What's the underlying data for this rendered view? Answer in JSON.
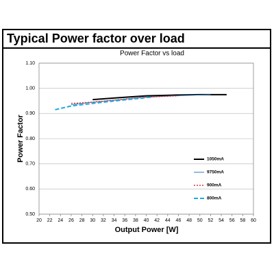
{
  "header": {
    "title": "Typical Power factor over load"
  },
  "chart_data": {
    "type": "line",
    "title": "Power Factor vs load",
    "x_label": "Output Power [W]",
    "y_label": "Power Factor",
    "xlim": [
      20,
      60
    ],
    "xticks": [
      20,
      22,
      24,
      26,
      28,
      30,
      32,
      34,
      36,
      38,
      40,
      42,
      44,
      46,
      48,
      50,
      52,
      54,
      56,
      58,
      60
    ],
    "ylim": [
      0.5,
      1.1
    ],
    "yticks": [
      {
        "value": 0.5,
        "label": "0.50"
      },
      {
        "value": 0.6,
        "label": "0.60"
      },
      {
        "value": 0.7,
        "label": "0.70"
      },
      {
        "value": 0.8,
        "label": "0.80"
      },
      {
        "value": 0.9,
        "label": "0.90"
      },
      {
        "value": 1.0,
        "label": "1.00"
      },
      {
        "value": 1.1,
        "label": "1.10"
      }
    ],
    "grid": true,
    "series": [
      {
        "name": "1050mA",
        "color": "#000000",
        "style": "solid",
        "width": 2,
        "x": [
          30,
          35,
          40,
          45,
          50,
          55
        ],
        "values": [
          0.955,
          0.963,
          0.97,
          0.973,
          0.975,
          0.975
        ]
      },
      {
        "name": "9750mA",
        "color": "#2e75b6",
        "style": "solid",
        "width": 1,
        "x": [
          26,
          30,
          35,
          40,
          45,
          52
        ],
        "values": [
          0.935,
          0.945,
          0.955,
          0.965,
          0.97,
          0.975
        ]
      },
      {
        "name": "900mA",
        "color": "#e03030",
        "style": "dotted",
        "width": 1.5,
        "x": [
          26,
          30,
          35,
          40,
          46
        ],
        "values": [
          0.94,
          0.945,
          0.955,
          0.965,
          0.97
        ]
      },
      {
        "name": "800mA",
        "color": "#1fa8e0",
        "style": "dashed",
        "width": 2,
        "x": [
          23,
          26,
          30,
          35,
          40,
          41
        ],
        "values": [
          0.915,
          0.93,
          0.94,
          0.952,
          0.963,
          0.965
        ]
      }
    ]
  }
}
